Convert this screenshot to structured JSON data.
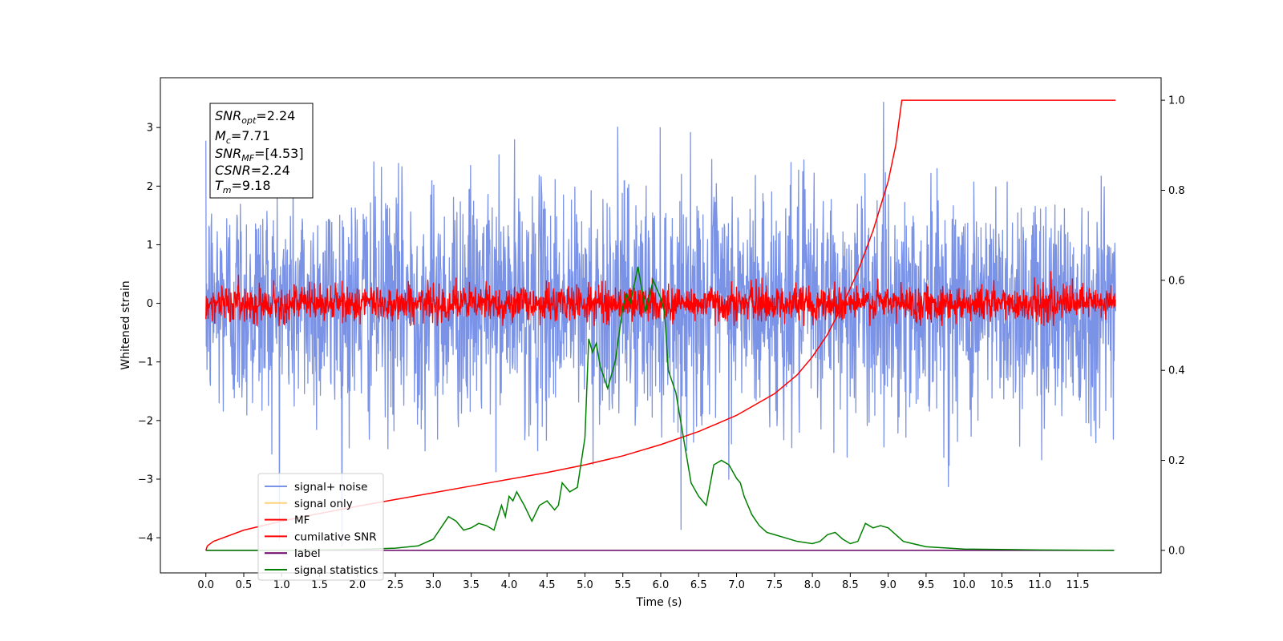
{
  "chart_data": {
    "type": "line",
    "xlabel": "Time (s)",
    "ylabel": "Whitened strain",
    "xlim": [
      -0.6,
      12.6
    ],
    "ylim": [
      -4.6,
      3.85
    ],
    "ylim_right": [
      -0.05,
      1.05
    ],
    "x_ticks": [
      "0.0",
      "0.5",
      "1.0",
      "1.5",
      "2.0",
      "2.5",
      "3.0",
      "3.5",
      "4.0",
      "4.5",
      "5.0",
      "5.5",
      "6.0",
      "6.5",
      "7.0",
      "7.5",
      "8.0",
      "8.5",
      "9.0",
      "9.5",
      "10.0",
      "10.5",
      "11.0",
      "11.5"
    ],
    "y_ticks": [
      "3",
      "2",
      "1",
      "0",
      "−1",
      "−2",
      "−3",
      "−4"
    ],
    "y_right_ticks": [
      "1.0",
      "0.8",
      "0.6",
      "0.4",
      "0.2",
      "0.0"
    ],
    "stats_box": {
      "snr_opt": {
        "base": "SNR",
        "sub": "opt",
        "value": "=2.24"
      },
      "mc": {
        "base": "M",
        "sub": "c",
        "value": "=7.71"
      },
      "snr_mf": {
        "base": "SNR",
        "sub": "MF",
        "value": "=[4.53]"
      },
      "csnr": {
        "base": "CSNR",
        "sub": "",
        "value": "=2.24"
      },
      "tm": {
        "base": "T",
        "sub": "m",
        "value": "=9.18"
      }
    },
    "legend": [
      {
        "label": "signal+ noise",
        "color": "#7b93e6"
      },
      {
        "label": "signal only",
        "color": "#ffd27a"
      },
      {
        "label": "MF",
        "color": "#ff0000"
      },
      {
        "label": "cumilative SNR",
        "color": "#ff0000"
      },
      {
        "label": "label",
        "color": "#660066"
      },
      {
        "label": "signal statistics",
        "color": "#008000"
      }
    ],
    "series": [
      {
        "name": "signal+ noise",
        "color": "#7b93e6",
        "kind": "noise",
        "x_range": [
          0.0,
          12.0
        ],
        "mean": 0.0,
        "envelope_sigma": 1.0,
        "min": -4.15,
        "max": 3.48
      },
      {
        "name": "MF",
        "color": "#ff0000",
        "kind": "noise",
        "x_range": [
          0.0,
          12.0
        ],
        "mean": 0.0,
        "envelope_sigma": 0.15,
        "min": -0.38,
        "max": 0.9
      },
      {
        "name": "cumilative SNR",
        "color": "#ff0000",
        "axis": "right",
        "x": [
          0.0,
          0.02,
          0.1,
          0.5,
          1.0,
          1.5,
          2.0,
          2.5,
          3.0,
          3.5,
          4.0,
          4.5,
          5.0,
          5.5,
          6.0,
          6.5,
          7.0,
          7.5,
          7.8,
          8.0,
          8.2,
          8.4,
          8.6,
          8.8,
          9.0,
          9.1,
          9.18,
          12.0
        ],
        "y": [
          0.0,
          0.01,
          0.02,
          0.045,
          0.065,
          0.082,
          0.098,
          0.113,
          0.128,
          0.143,
          0.158,
          0.173,
          0.19,
          0.21,
          0.235,
          0.264,
          0.3,
          0.348,
          0.39,
          0.43,
          0.48,
          0.545,
          0.62,
          0.71,
          0.82,
          0.9,
          1.0,
          1.0
        ]
      },
      {
        "name": "label",
        "color": "#660066",
        "axis": "right",
        "x": [
          0.0,
          11.98
        ],
        "y": [
          0.0,
          0.0
        ]
      },
      {
        "name": "signal statistics",
        "color": "#008000",
        "axis": "right",
        "x": [
          0.0,
          1.0,
          2.0,
          2.5,
          2.8,
          3.0,
          3.1,
          3.2,
          3.3,
          3.4,
          3.5,
          3.6,
          3.7,
          3.8,
          3.9,
          3.95,
          4.0,
          4.05,
          4.1,
          4.2,
          4.3,
          4.4,
          4.5,
          4.6,
          4.65,
          4.7,
          4.8,
          4.9,
          5.0,
          5.05,
          5.1,
          5.15,
          5.2,
          5.3,
          5.4,
          5.5,
          5.55,
          5.6,
          5.7,
          5.8,
          5.9,
          6.0,
          6.05,
          6.1,
          6.2,
          6.3,
          6.4,
          6.5,
          6.6,
          6.7,
          6.8,
          6.9,
          7.0,
          7.05,
          7.1,
          7.2,
          7.3,
          7.4,
          7.5,
          7.6,
          7.8,
          8.0,
          8.1,
          8.2,
          8.3,
          8.4,
          8.5,
          8.6,
          8.7,
          8.8,
          8.9,
          9.0,
          9.2,
          9.5,
          10.0,
          11.0,
          11.98
        ],
        "y": [
          0.0,
          0.0,
          0.002,
          0.005,
          0.01,
          0.025,
          0.05,
          0.075,
          0.065,
          0.045,
          0.05,
          0.06,
          0.055,
          0.045,
          0.1,
          0.075,
          0.12,
          0.11,
          0.13,
          0.1,
          0.065,
          0.1,
          0.11,
          0.09,
          0.1,
          0.15,
          0.13,
          0.14,
          0.25,
          0.47,
          0.44,
          0.46,
          0.41,
          0.36,
          0.42,
          0.54,
          0.57,
          0.55,
          0.63,
          0.53,
          0.6,
          0.56,
          0.53,
          0.4,
          0.35,
          0.25,
          0.15,
          0.12,
          0.1,
          0.19,
          0.2,
          0.19,
          0.16,
          0.15,
          0.12,
          0.08,
          0.055,
          0.04,
          0.035,
          0.03,
          0.02,
          0.015,
          0.02,
          0.035,
          0.04,
          0.025,
          0.015,
          0.02,
          0.06,
          0.05,
          0.055,
          0.05,
          0.02,
          0.008,
          0.003,
          0.001,
          0.0
        ]
      }
    ]
  }
}
